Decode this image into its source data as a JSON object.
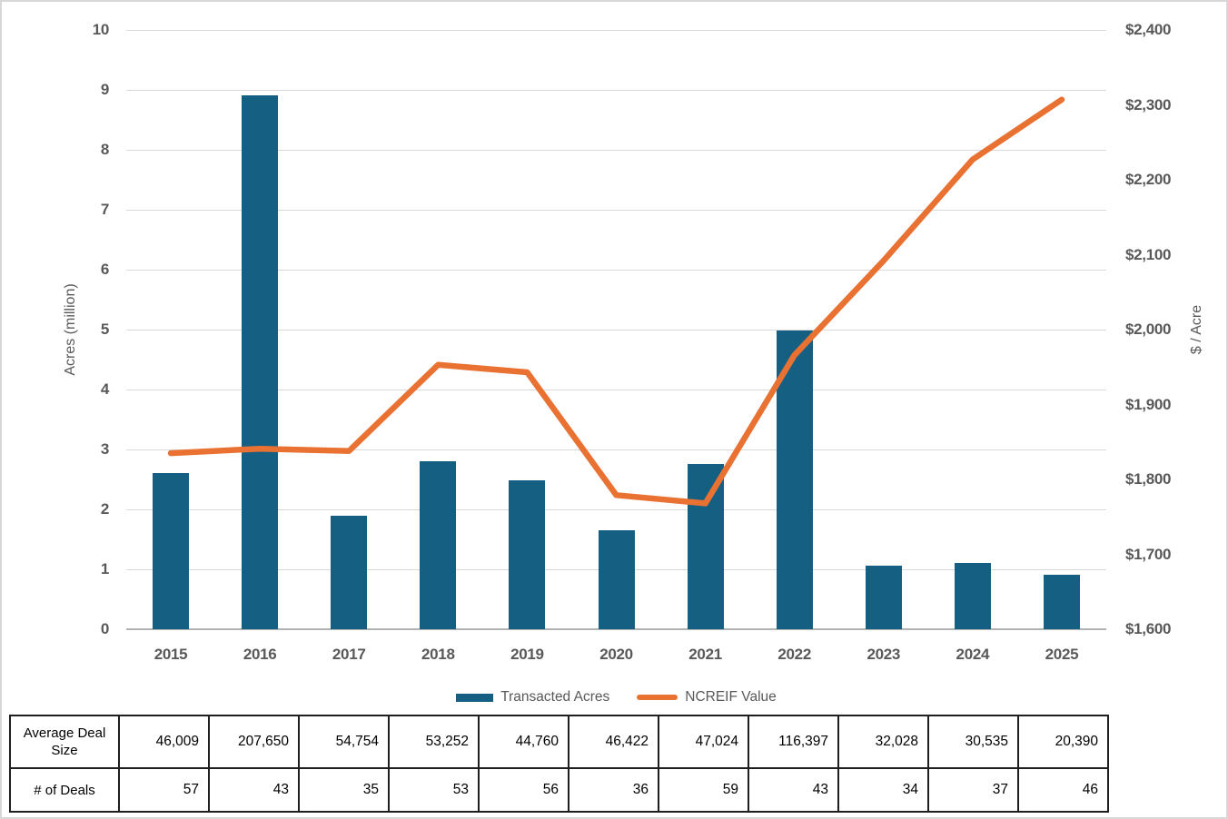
{
  "chart_data": {
    "type": "combo-bar-line",
    "categories": [
      "2015",
      "2016",
      "2017",
      "2018",
      "2019",
      "2020",
      "2021",
      "2022",
      "2023",
      "2024",
      "2025"
    ],
    "series": [
      {
        "name": "Transacted Acres",
        "type": "bar",
        "axis": "left",
        "color": "#156082",
        "values": [
          2.61,
          8.91,
          1.89,
          2.8,
          2.49,
          1.65,
          2.76,
          4.99,
          1.06,
          1.11,
          0.91
        ]
      },
      {
        "name": "NCREIF Value",
        "type": "line",
        "axis": "right",
        "color": "#E97132",
        "values": [
          1835,
          1841,
          1838,
          1953,
          1943,
          1779,
          1768,
          1966,
          2092,
          2227,
          2307
        ]
      }
    ],
    "left_axis": {
      "label": "Acres (million)",
      "min": 0,
      "max": 10,
      "step": 1,
      "ticks": [
        "0",
        "1",
        "2",
        "3",
        "4",
        "5",
        "6",
        "7",
        "8",
        "9",
        "10"
      ]
    },
    "right_axis": {
      "label": "$ / Acre",
      "min": 1600,
      "max": 2400,
      "step": 100,
      "ticks": [
        "$1,600",
        "$1,700",
        "$1,800",
        "$1,900",
        "$2,000",
        "$2,100",
        "$2,200",
        "$2,300",
        "$2,400"
      ]
    },
    "legend": {
      "position": "bottom"
    },
    "grid": true
  },
  "table": {
    "rows": [
      {
        "header": "Average Deal Size",
        "values": [
          "46,009",
          "207,650",
          "54,754",
          "53,252",
          "44,760",
          "46,422",
          "47,024",
          "116,397",
          "32,028",
          "30,535",
          "20,390"
        ]
      },
      {
        "header": "# of Deals",
        "values": [
          "57",
          "43",
          "35",
          "53",
          "56",
          "36",
          "59",
          "43",
          "34",
          "37",
          "46"
        ]
      }
    ]
  },
  "colors": {
    "bar": "#156082",
    "line": "#E97132",
    "gridline": "#d9d9d9",
    "axis_text": "#595959"
  }
}
